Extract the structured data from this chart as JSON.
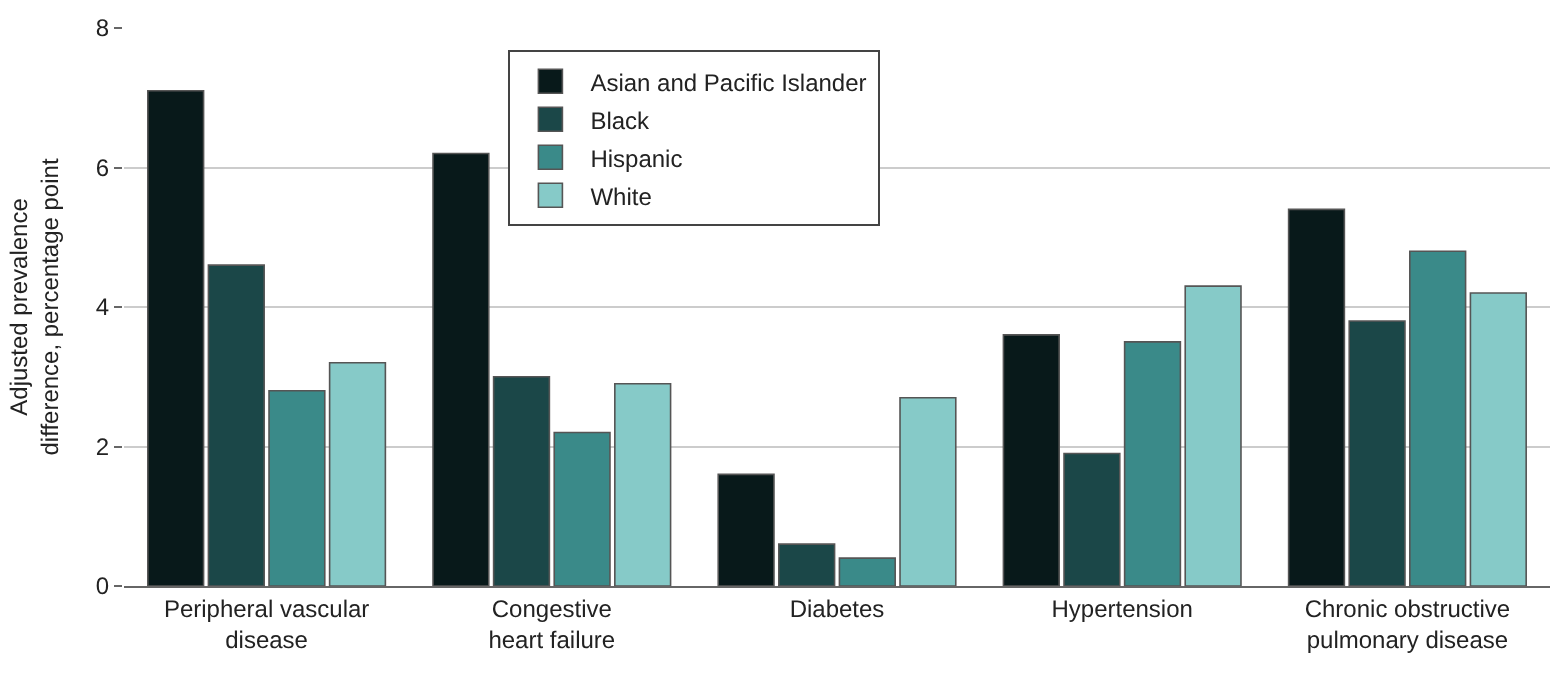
{
  "chart_data": {
    "type": "bar",
    "ylabel": "Adjusted prevalence\ndifference, percentage point",
    "categories": [
      "Peripheral vascular\ndisease",
      "Congestive\nheart failure",
      "Diabetes",
      "Hypertension",
      "Chronic obstructive\npulmonary disease"
    ],
    "series": [
      {
        "name": "Asian and Pacific Islander",
        "color": "#08191a",
        "values": [
          7.1,
          6.2,
          1.6,
          3.6,
          5.4
        ]
      },
      {
        "name": "Black",
        "color": "#1b4748",
        "values": [
          4.6,
          3.0,
          0.6,
          1.9,
          3.8
        ]
      },
      {
        "name": "Hispanic",
        "color": "#3a8a89",
        "values": [
          2.8,
          2.2,
          0.4,
          3.5,
          4.8
        ]
      },
      {
        "name": "White",
        "color": "#86cac8",
        "values": [
          3.2,
          2.9,
          2.7,
          4.3,
          4.2
        ]
      }
    ],
    "ylim": [
      0,
      8
    ],
    "yticks": [
      0,
      2,
      4,
      6,
      8
    ],
    "grid": "y",
    "legend": "top"
  }
}
